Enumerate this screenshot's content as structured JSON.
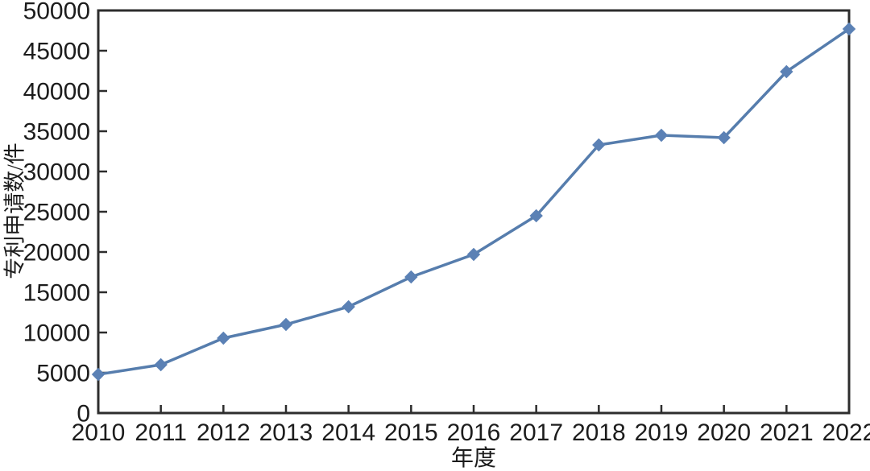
{
  "page": {
    "background_color": "#ffffff"
  },
  "chart_data": {
    "type": "line",
    "title": "",
    "xlabel": "年度",
    "ylabel": "专利申请数/件",
    "categories": [
      "2010",
      "2011",
      "2012",
      "2013",
      "2014",
      "2015",
      "2016",
      "2017",
      "2018",
      "2019",
      "2020",
      "2021",
      "2022"
    ],
    "values": [
      4800,
      6000,
      9300,
      11000,
      13200,
      16900,
      19700,
      24500,
      33300,
      34500,
      34200,
      42400,
      47700
    ],
    "ylim": [
      0,
      50000
    ],
    "ytick_step": 5000,
    "yticks": [
      0,
      5000,
      10000,
      15000,
      20000,
      25000,
      30000,
      35000,
      40000,
      45000,
      50000
    ],
    "grid": false,
    "legend": null,
    "line_color": "#567dad",
    "marker": "diamond",
    "marker_color": "#5b81b5",
    "axis_color": "#2d2d2d",
    "text_color": "#1c1c1c"
  }
}
